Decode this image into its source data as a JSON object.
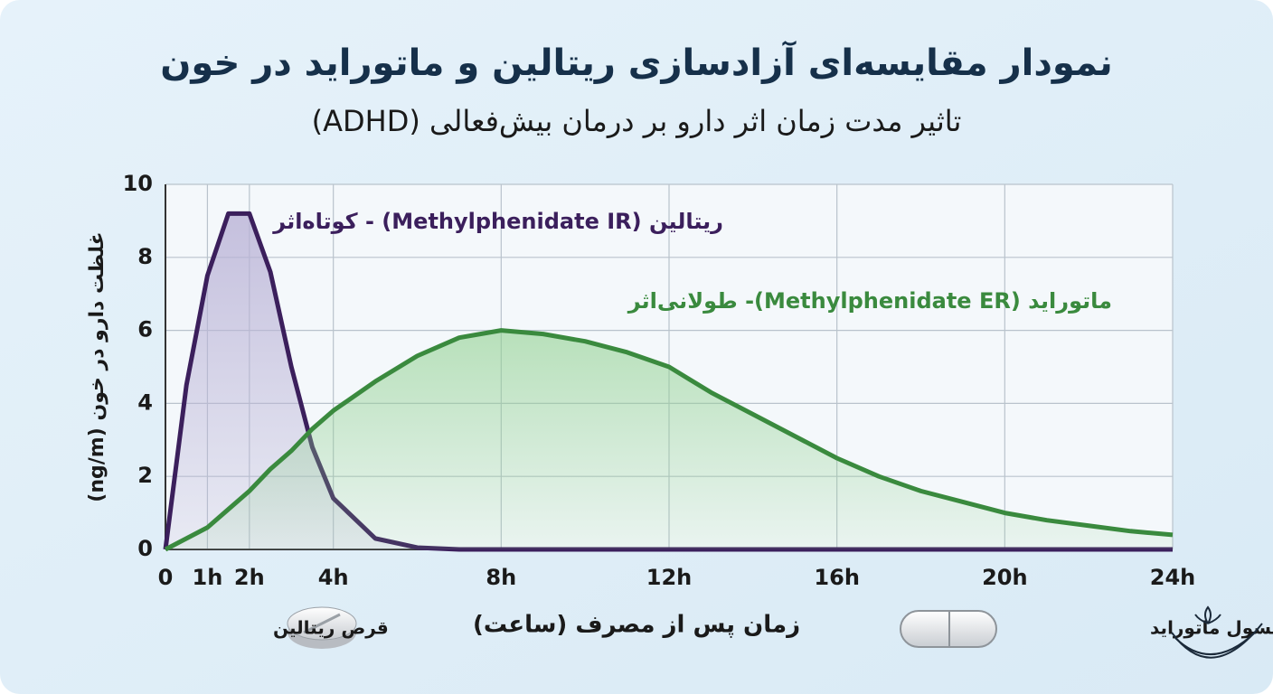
{
  "chart_data": {
    "type": "line",
    "title": "نمودار مقایسه‌ای آزادسازی ریتالین و ماتوراید در خون",
    "subtitle": "تاثیر مدت زمان اثر دارو بر درمان بیش‌فعالی (ADHD)",
    "y_label": "غلظت دارو در خون (ng/m)",
    "x_label": "زمان پس از مصرف (ساعت)",
    "x": [
      0,
      0.5,
      1,
      1.5,
      2,
      2.5,
      3,
      3.5,
      4,
      5,
      6,
      7,
      8,
      9,
      10,
      11,
      12,
      13,
      14,
      15,
      16,
      17,
      18,
      19,
      20,
      21,
      22,
      23,
      24
    ],
    "series": [
      {
        "name": "ریتالین (Methylphenidate IR) - کوتاه‌اثر",
        "color": "#3b1f5c",
        "fill": "#b9b2d6",
        "values": [
          0,
          4.5,
          7.5,
          9.2,
          9.2,
          7.6,
          5.0,
          2.8,
          1.4,
          0.3,
          0.05,
          0,
          0,
          0,
          0,
          0,
          0,
          0,
          0,
          0,
          0,
          0,
          0,
          0,
          0,
          0,
          0,
          0,
          0
        ]
      },
      {
        "name": "ماتوراید (Methylphenidate ER)- طولانی‌اثر",
        "color": "#3a8a3e",
        "fill": "#8fd08f",
        "values": [
          0,
          0.3,
          0.6,
          1.1,
          1.6,
          2.2,
          2.7,
          3.3,
          3.8,
          4.6,
          5.3,
          5.8,
          6.0,
          5.9,
          5.7,
          5.4,
          5.0,
          4.3,
          3.7,
          3.1,
          2.5,
          2.0,
          1.6,
          1.3,
          1.0,
          0.8,
          0.65,
          0.5,
          0.4
        ]
      }
    ],
    "xlim": [
      0,
      24
    ],
    "xticks": [
      0,
      {
        "value": 1,
        "label": "1h"
      },
      {
        "value": 2,
        "label": "2h"
      },
      {
        "value": 4,
        "label": "4h"
      },
      {
        "value": 8,
        "label": "8h"
      },
      {
        "value": 12,
        "label": "12h"
      },
      {
        "value": 16,
        "label": "16h"
      },
      {
        "value": 20,
        "label": "20h"
      },
      {
        "value": 24,
        "label": "24h"
      }
    ],
    "ylim": [
      0,
      10
    ],
    "yticks": [
      0,
      2,
      4,
      6,
      8,
      10
    ],
    "grid": true,
    "icon_labels": [
      "قرص ریتالین",
      "کپسول ماتوراید"
    ]
  }
}
